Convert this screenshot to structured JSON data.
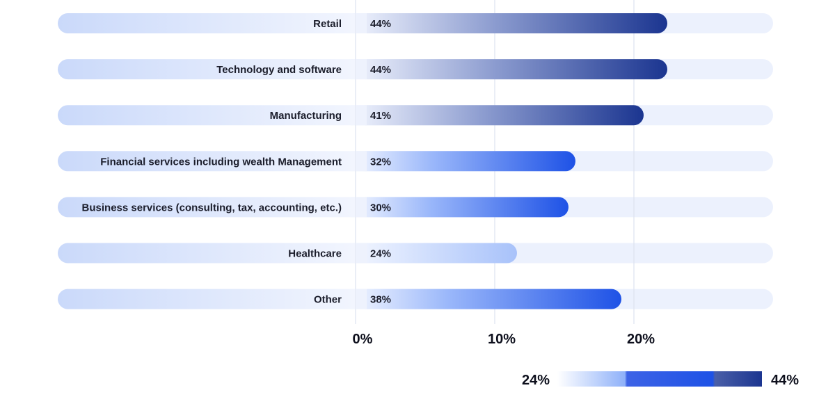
{
  "chart_data": {
    "type": "bar",
    "orientation": "horizontal",
    "categories": [
      "Retail",
      "Technology and software",
      "Manufacturing",
      "Financial services including wealth Management",
      "Business services (consulting, tax, accounting, etc.)",
      "Healthcare",
      "Other"
    ],
    "values": [
      22.4,
      22.4,
      20.7,
      15.8,
      15.3,
      11.6,
      19.1
    ],
    "value_labels": [
      "44%",
      "44%",
      "41%",
      "32%",
      "30%",
      "24%",
      "38%"
    ],
    "xlim": [
      0,
      30
    ],
    "x_ticks": [
      0,
      10,
      20
    ],
    "x_tick_labels": [
      "0%",
      "10%",
      "20%"
    ],
    "grid": true,
    "legend": {
      "type": "color-scale",
      "min_label": "24%",
      "max_label": "44%",
      "colors": [
        "#ffffff",
        "#8fb1f9",
        "#3d63e6",
        "#1e52e6",
        "#4a5fa8",
        "#1b3590"
      ]
    },
    "colors": {
      "track": "#ecf1fd",
      "label_pill_start": "#cad9fa",
      "label_pill_end": "#f3f6fe",
      "grid": "#dde2ef"
    }
  }
}
